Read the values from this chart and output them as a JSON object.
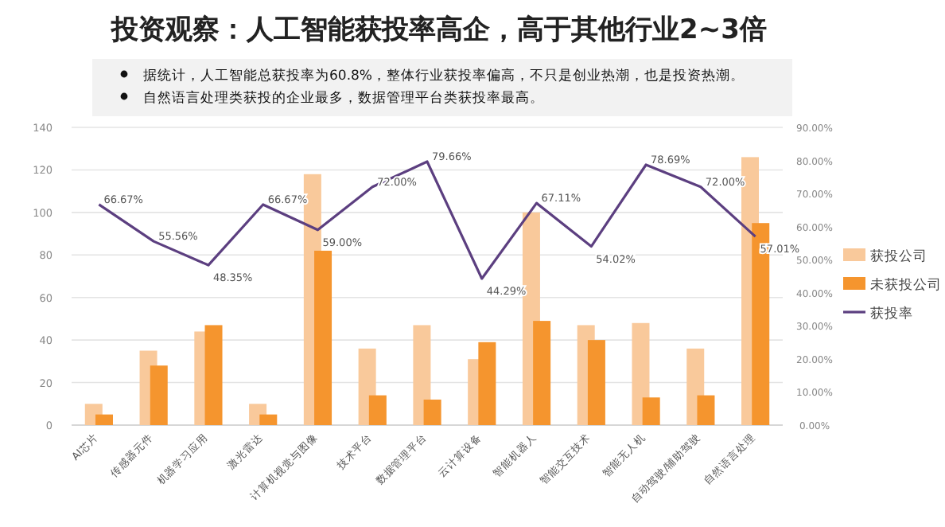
{
  "chart_data": {
    "type": "bar",
    "title": "投资观察：人工智能获投率高企，高于其他行业2~3倍",
    "annotations": [
      "据统计，人工智能总获投率为60.8%，整体行业获投率偏高，不只是创业热潮，也是投资热潮。",
      "自然语言处理类获投的企业最多，数据管理平台类获投率最高。"
    ],
    "categories": [
      "AI芯片",
      "传感器元件",
      "机器学习应用",
      "激光雷达",
      "计算机视觉与图像",
      "技术平台",
      "数据管理平台",
      "云计算设备",
      "智能机器人",
      "智能交互技术",
      "智能无人机",
      "自动驾驶/辅助驾驶",
      "自然语言处理"
    ],
    "series": [
      {
        "name": "获投公司",
        "color": "#f9c99b",
        "values": [
          10,
          35,
          44,
          10,
          118,
          36,
          47,
          31,
          100,
          47,
          48,
          36,
          126
        ]
      },
      {
        "name": "未获投公司",
        "color": "#f5952e",
        "values": [
          5,
          28,
          47,
          5,
          82,
          14,
          12,
          39,
          49,
          40,
          13,
          14,
          95
        ]
      },
      {
        "name": "获投率",
        "type": "line",
        "axis": "y2",
        "color": "#5c3f80",
        "values": [
          66.67,
          55.56,
          48.35,
          66.67,
          59.0,
          72.0,
          79.66,
          44.29,
          67.11,
          54.02,
          78.69,
          72.0,
          57.01
        ],
        "value_labels": [
          "66.67%",
          "55.56%",
          "48.35%",
          "66.67%",
          "59.00%",
          "72.00%",
          "79.66%",
          "44.29%",
          "67.11%",
          "54.02%",
          "78.69%",
          "72.00%",
          "57.01%"
        ]
      }
    ],
    "ylim": [
      0,
      140
    ],
    "yticks": [
      0,
      20,
      40,
      60,
      80,
      100,
      120,
      140
    ],
    "y2lim": [
      0,
      90
    ],
    "y2ticks": [
      {
        "value": 0,
        "label": "0.00%"
      },
      {
        "value": 10,
        "label": "10.00%"
      },
      {
        "value": 20,
        "label": "20.00%"
      },
      {
        "value": 30,
        "label": "30.00%"
      },
      {
        "value": 40,
        "label": "40.00%"
      },
      {
        "value": 50,
        "label": "50.00%"
      },
      {
        "value": 60,
        "label": "60.00%"
      },
      {
        "value": 70,
        "label": "70.00%"
      },
      {
        "value": 80,
        "label": "80.00%"
      },
      {
        "value": 90,
        "label": "90.00%"
      }
    ],
    "grid": "y",
    "legend": "right"
  }
}
